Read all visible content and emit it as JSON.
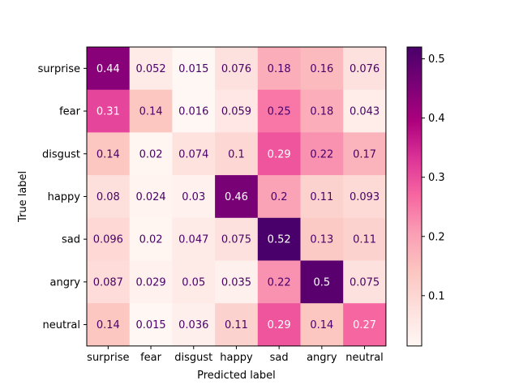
{
  "chart_data": {
    "type": "heatmap",
    "title": "",
    "xlabel": "Predicted label",
    "ylabel": "True label",
    "x_categories": [
      "surprise",
      "fear",
      "disgust",
      "happy",
      "sad",
      "angry",
      "neutral"
    ],
    "y_categories": [
      "surprise",
      "fear",
      "disgust",
      "happy",
      "sad",
      "angry",
      "neutral"
    ],
    "values": [
      [
        0.44,
        0.052,
        0.015,
        0.076,
        0.18,
        0.16,
        0.076
      ],
      [
        0.31,
        0.14,
        0.016,
        0.059,
        0.25,
        0.18,
        0.043
      ],
      [
        0.14,
        0.02,
        0.074,
        0.1,
        0.29,
        0.22,
        0.17
      ],
      [
        0.08,
        0.024,
        0.03,
        0.46,
        0.2,
        0.11,
        0.093
      ],
      [
        0.096,
        0.02,
        0.047,
        0.075,
        0.52,
        0.13,
        0.11
      ],
      [
        0.087,
        0.029,
        0.05,
        0.035,
        0.22,
        0.5,
        0.075
      ],
      [
        0.14,
        0.015,
        0.036,
        0.11,
        0.29,
        0.14,
        0.27
      ]
    ],
    "labels": [
      [
        "0.44",
        "0.052",
        "0.015",
        "0.076",
        "0.18",
        "0.16",
        "0.076"
      ],
      [
        "0.31",
        "0.14",
        "0.016",
        "0.059",
        "0.25",
        "0.18",
        "0.043"
      ],
      [
        "0.14",
        "0.02",
        "0.074",
        "0.1",
        "0.29",
        "0.22",
        "0.17"
      ],
      [
        "0.08",
        "0.024",
        "0.03",
        "0.46",
        "0.2",
        "0.11",
        "0.093"
      ],
      [
        "0.096",
        "0.02",
        "0.047",
        "0.075",
        "0.52",
        "0.13",
        "0.11"
      ],
      [
        "0.087",
        "0.029",
        "0.05",
        "0.035",
        "0.22",
        "0.5",
        "0.075"
      ],
      [
        "0.14",
        "0.015",
        "0.036",
        "0.11",
        "0.29",
        "0.14",
        "0.27"
      ]
    ],
    "colormap": "RdPu",
    "colorbar": {
      "range": [
        0.015,
        0.52
      ],
      "ticks": [
        0.1,
        0.2,
        0.3,
        0.4,
        0.5
      ],
      "tick_labels": [
        "0.1",
        "0.2",
        "0.3",
        "0.4",
        "0.5"
      ]
    },
    "colors": {
      "text_light": "#ffffff",
      "text_dark": "#49006a",
      "axis": "#000000"
    }
  }
}
